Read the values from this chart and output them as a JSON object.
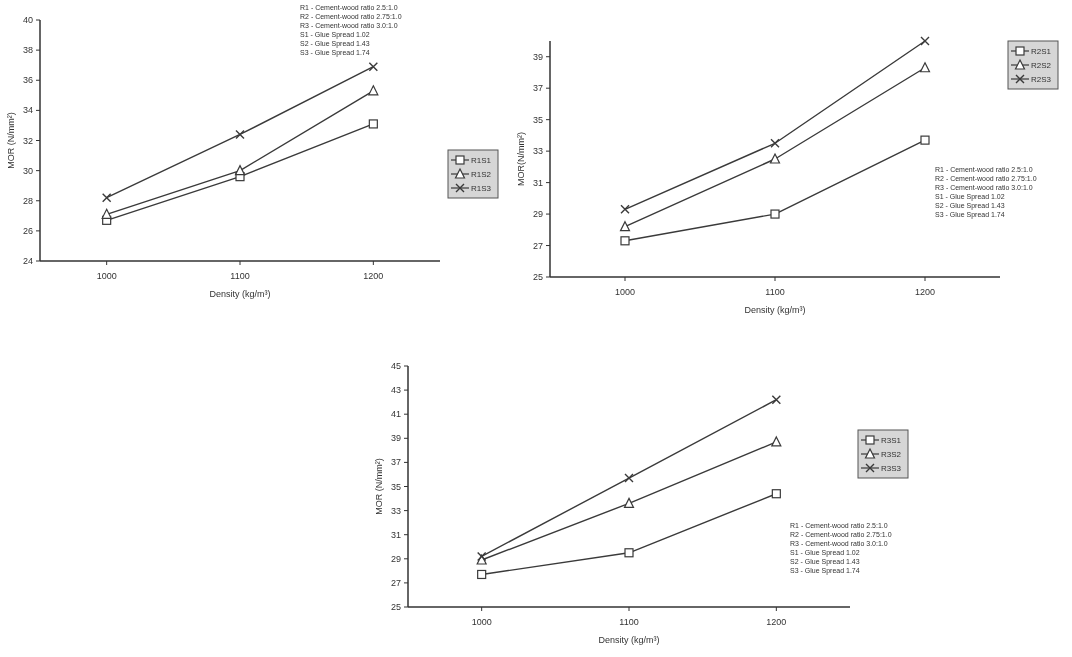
{
  "chart_data": [
    {
      "type": "line",
      "x": [
        1000,
        1100,
        1200
      ],
      "xlabel": "Density (kg/m³)",
      "ylabel": "MOR (N/mm²)",
      "xlim": [
        950,
        1250
      ],
      "xticks": [
        1000,
        1100,
        1200
      ],
      "ylim": [
        24,
        40
      ],
      "yticks": [
        24,
        26,
        28,
        30,
        32,
        34,
        36,
        38,
        40
      ],
      "grid": false,
      "legend": "right",
      "line_style": "solid",
      "series": [
        {
          "name": "R1S1",
          "color": "#3a3a3a",
          "marker": "square",
          "values": [
            26.7,
            29.6,
            33.1
          ]
        },
        {
          "name": "R1S2",
          "color": "#3a3a3a",
          "marker": "triangle",
          "values": [
            27.1,
            30.0,
            35.3
          ]
        },
        {
          "name": "R1S3",
          "color": "#3a3a3a",
          "marker": "cross",
          "values": [
            28.2,
            32.4,
            36.9
          ]
        }
      ],
      "annotations": [
        "R1 - Cement-wood ratio 2.5:1.0",
        "R2 - Cement-wood ratio 2.75:1.0",
        "R3 - Cement-wood ratio 3.0:1.0",
        "S1 - Glue Spread 1.02",
        "S2 - Glue Spread 1.43",
        "S3 - Glue Spread 1.74"
      ]
    },
    {
      "type": "line",
      "x": [
        1000,
        1100,
        1200
      ],
      "xlabel": "Density (kg/m³)",
      "ylabel": "MOR(N/mm²)",
      "xlim": [
        950,
        1250
      ],
      "xticks": [
        1000,
        1100,
        1200
      ],
      "ylim": [
        25,
        40
      ],
      "yticks": [
        25,
        27,
        29,
        31,
        33,
        35,
        37,
        39
      ],
      "grid": false,
      "legend": "top right",
      "line_style": "solid",
      "series": [
        {
          "name": "R2S1",
          "color": "#3a3a3a",
          "marker": "square",
          "values": [
            27.3,
            29.0,
            33.7
          ]
        },
        {
          "name": "R2S2",
          "color": "#3a3a3a",
          "marker": "triangle",
          "values": [
            28.2,
            32.5,
            38.3
          ]
        },
        {
          "name": "R2S3",
          "color": "#3a3a3a",
          "marker": "cross",
          "values": [
            29.3,
            33.5,
            40
          ]
        }
      ],
      "annotations": [
        "R1 - Cement-wood ratio 2.5:1.0",
        "R2 - Cement-wood ratio 2.75:1.0",
        "R3 - Cement-wood ratio 3.0:1.0",
        "S1 - Glue Spread 1.02",
        "S2 - Glue Spread 1.43",
        "S3 - Glue Spread 1.74"
      ]
    },
    {
      "type": "line",
      "x": [
        1000,
        1100,
        1200
      ],
      "xlabel": "Density (kg/m³)",
      "ylabel": "MOR (N/mm²)",
      "xlim": [
        950,
        1250
      ],
      "xticks": [
        1000,
        1100,
        1200
      ],
      "ylim": [
        25,
        45
      ],
      "yticks": [
        25,
        27,
        29,
        31,
        33,
        35,
        37,
        39,
        41,
        43,
        45
      ],
      "grid": false,
      "legend": "right",
      "line_style": "solid",
      "series": [
        {
          "name": "R3S1",
          "color": "#3a3a3a",
          "marker": "square",
          "values": [
            27.7,
            29.5,
            34.4
          ]
        },
        {
          "name": "R3S2",
          "color": "#3a3a3a",
          "marker": "triangle",
          "values": [
            28.9,
            33.6,
            38.7
          ]
        },
        {
          "name": "R3S3",
          "color": "#3a3a3a",
          "marker": "cross",
          "values": [
            29.2,
            35.7,
            42.2
          ]
        }
      ],
      "annotations": [
        "R1 - Cement-wood ratio 2.5:1.0",
        "R2 - Cement-wood ratio 2.75:1.0",
        "R3 - Cement-wood ratio 3.0:1.0",
        "S1 - Glue Spread 1.02",
        "S2 - Glue Spread 1.43",
        "S3 - Glue Spread 1.74"
      ]
    }
  ]
}
